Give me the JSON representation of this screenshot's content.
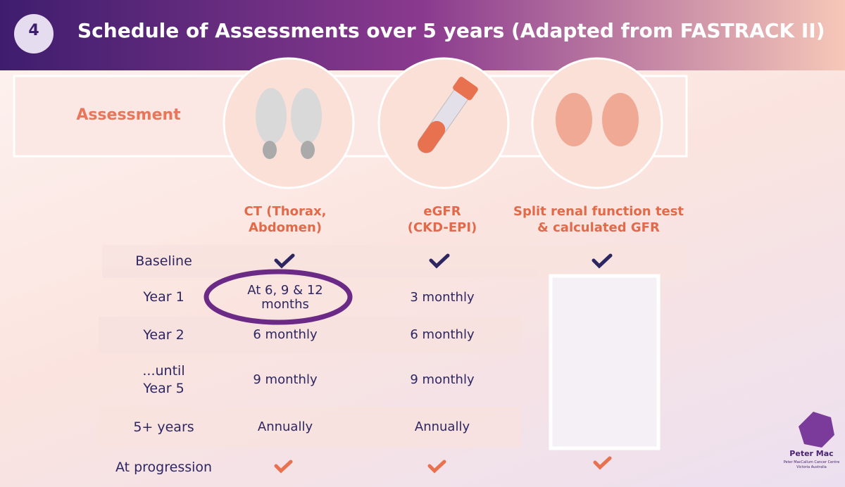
{
  "header": {
    "number": "4",
    "title": "Schedule of Assessments over 5 years (Adapted from FASTRACK II)"
  },
  "table": {
    "corner": "Assessment",
    "columns": [
      [
        "CT (Thorax,",
        "Abdomen)"
      ],
      [
        "eGFR",
        "(CKD-EPI)"
      ],
      [
        "Split renal function test",
        "& calculated GFR"
      ]
    ],
    "rows": [
      {
        "label": [
          "Baseline"
        ]
      },
      {
        "label": [
          "Year 1"
        ],
        "cells": [
          [
            "At 6, 9 & 12",
            "months"
          ],
          [
            "3 monthly"
          ]
        ]
      },
      {
        "label": [
          "Year 2"
        ],
        "cells": [
          [
            "6 monthly"
          ],
          [
            "6 monthly"
          ]
        ]
      },
      {
        "label": [
          "...until",
          "Year 5"
        ],
        "cells": [
          [
            "9 monthly"
          ],
          [
            "9 monthly"
          ]
        ]
      },
      {
        "label": [
          "5+ years"
        ],
        "cells": [
          [
            "Annually"
          ],
          [
            "Annually"
          ]
        ]
      },
      {
        "label": [
          "At progression"
        ]
      }
    ]
  },
  "logo": {
    "name": "Peter Mac",
    "subtitle": [
      "Peter MacCallum Cancer Centre",
      "Victoria Australia"
    ]
  }
}
